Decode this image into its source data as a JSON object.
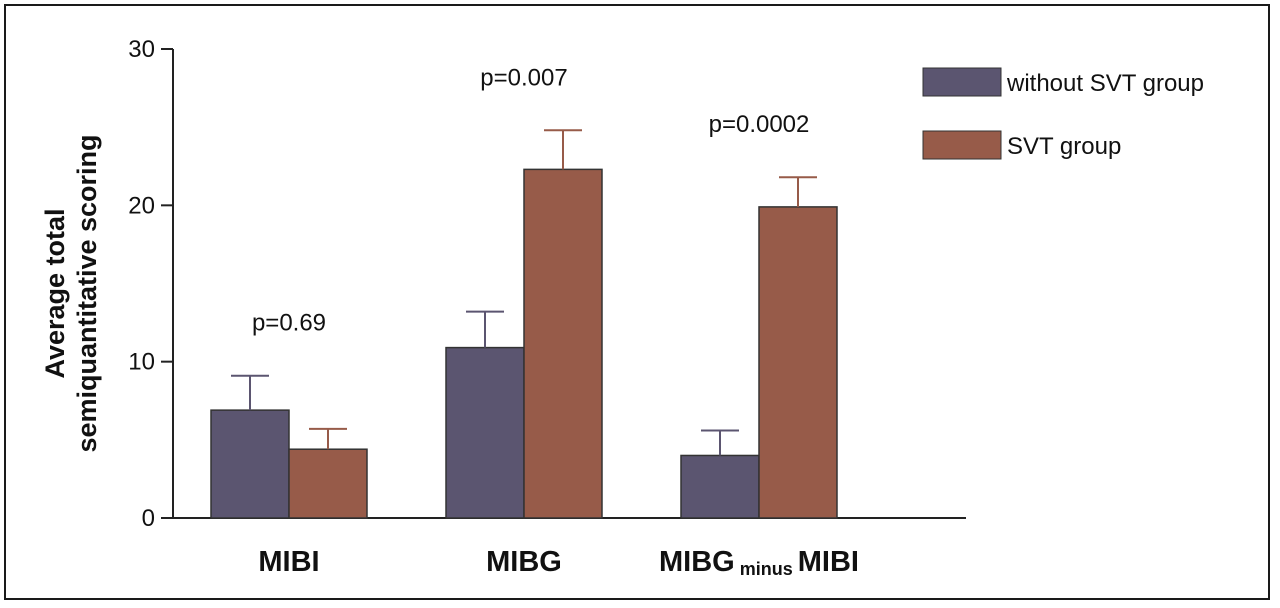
{
  "chart_data": {
    "type": "bar",
    "categories": [
      "MIBI",
      "MIBG",
      "MIBG minus MIBI"
    ],
    "category_parts": [
      {
        "main": "MIBI",
        "sub": "",
        "tail": ""
      },
      {
        "main": "MIBG",
        "sub": "",
        "tail": ""
      },
      {
        "main": "MIBG",
        "sub": "minus",
        "tail": "MIBI"
      }
    ],
    "series": [
      {
        "name": "without SVT group",
        "values": [
          6.9,
          10.9,
          4.0
        ],
        "errors": [
          2.2,
          2.3,
          1.6
        ],
        "color": "#5b5570"
      },
      {
        "name": "SVT group",
        "values": [
          4.4,
          22.3,
          19.9
        ],
        "errors": [
          1.3,
          2.5,
          1.9
        ],
        "color": "#975b49"
      }
    ],
    "annotations": [
      "p=0.69",
      "p=0.007",
      "p=0.0002"
    ],
    "ylabel_lines": [
      "Average total",
      "semiquantitative scoring"
    ],
    "xlabel": "",
    "ylim": [
      0,
      30
    ],
    "yticks": [
      0,
      10,
      20,
      30
    ],
    "grid": false,
    "legend_position": "top-right"
  }
}
